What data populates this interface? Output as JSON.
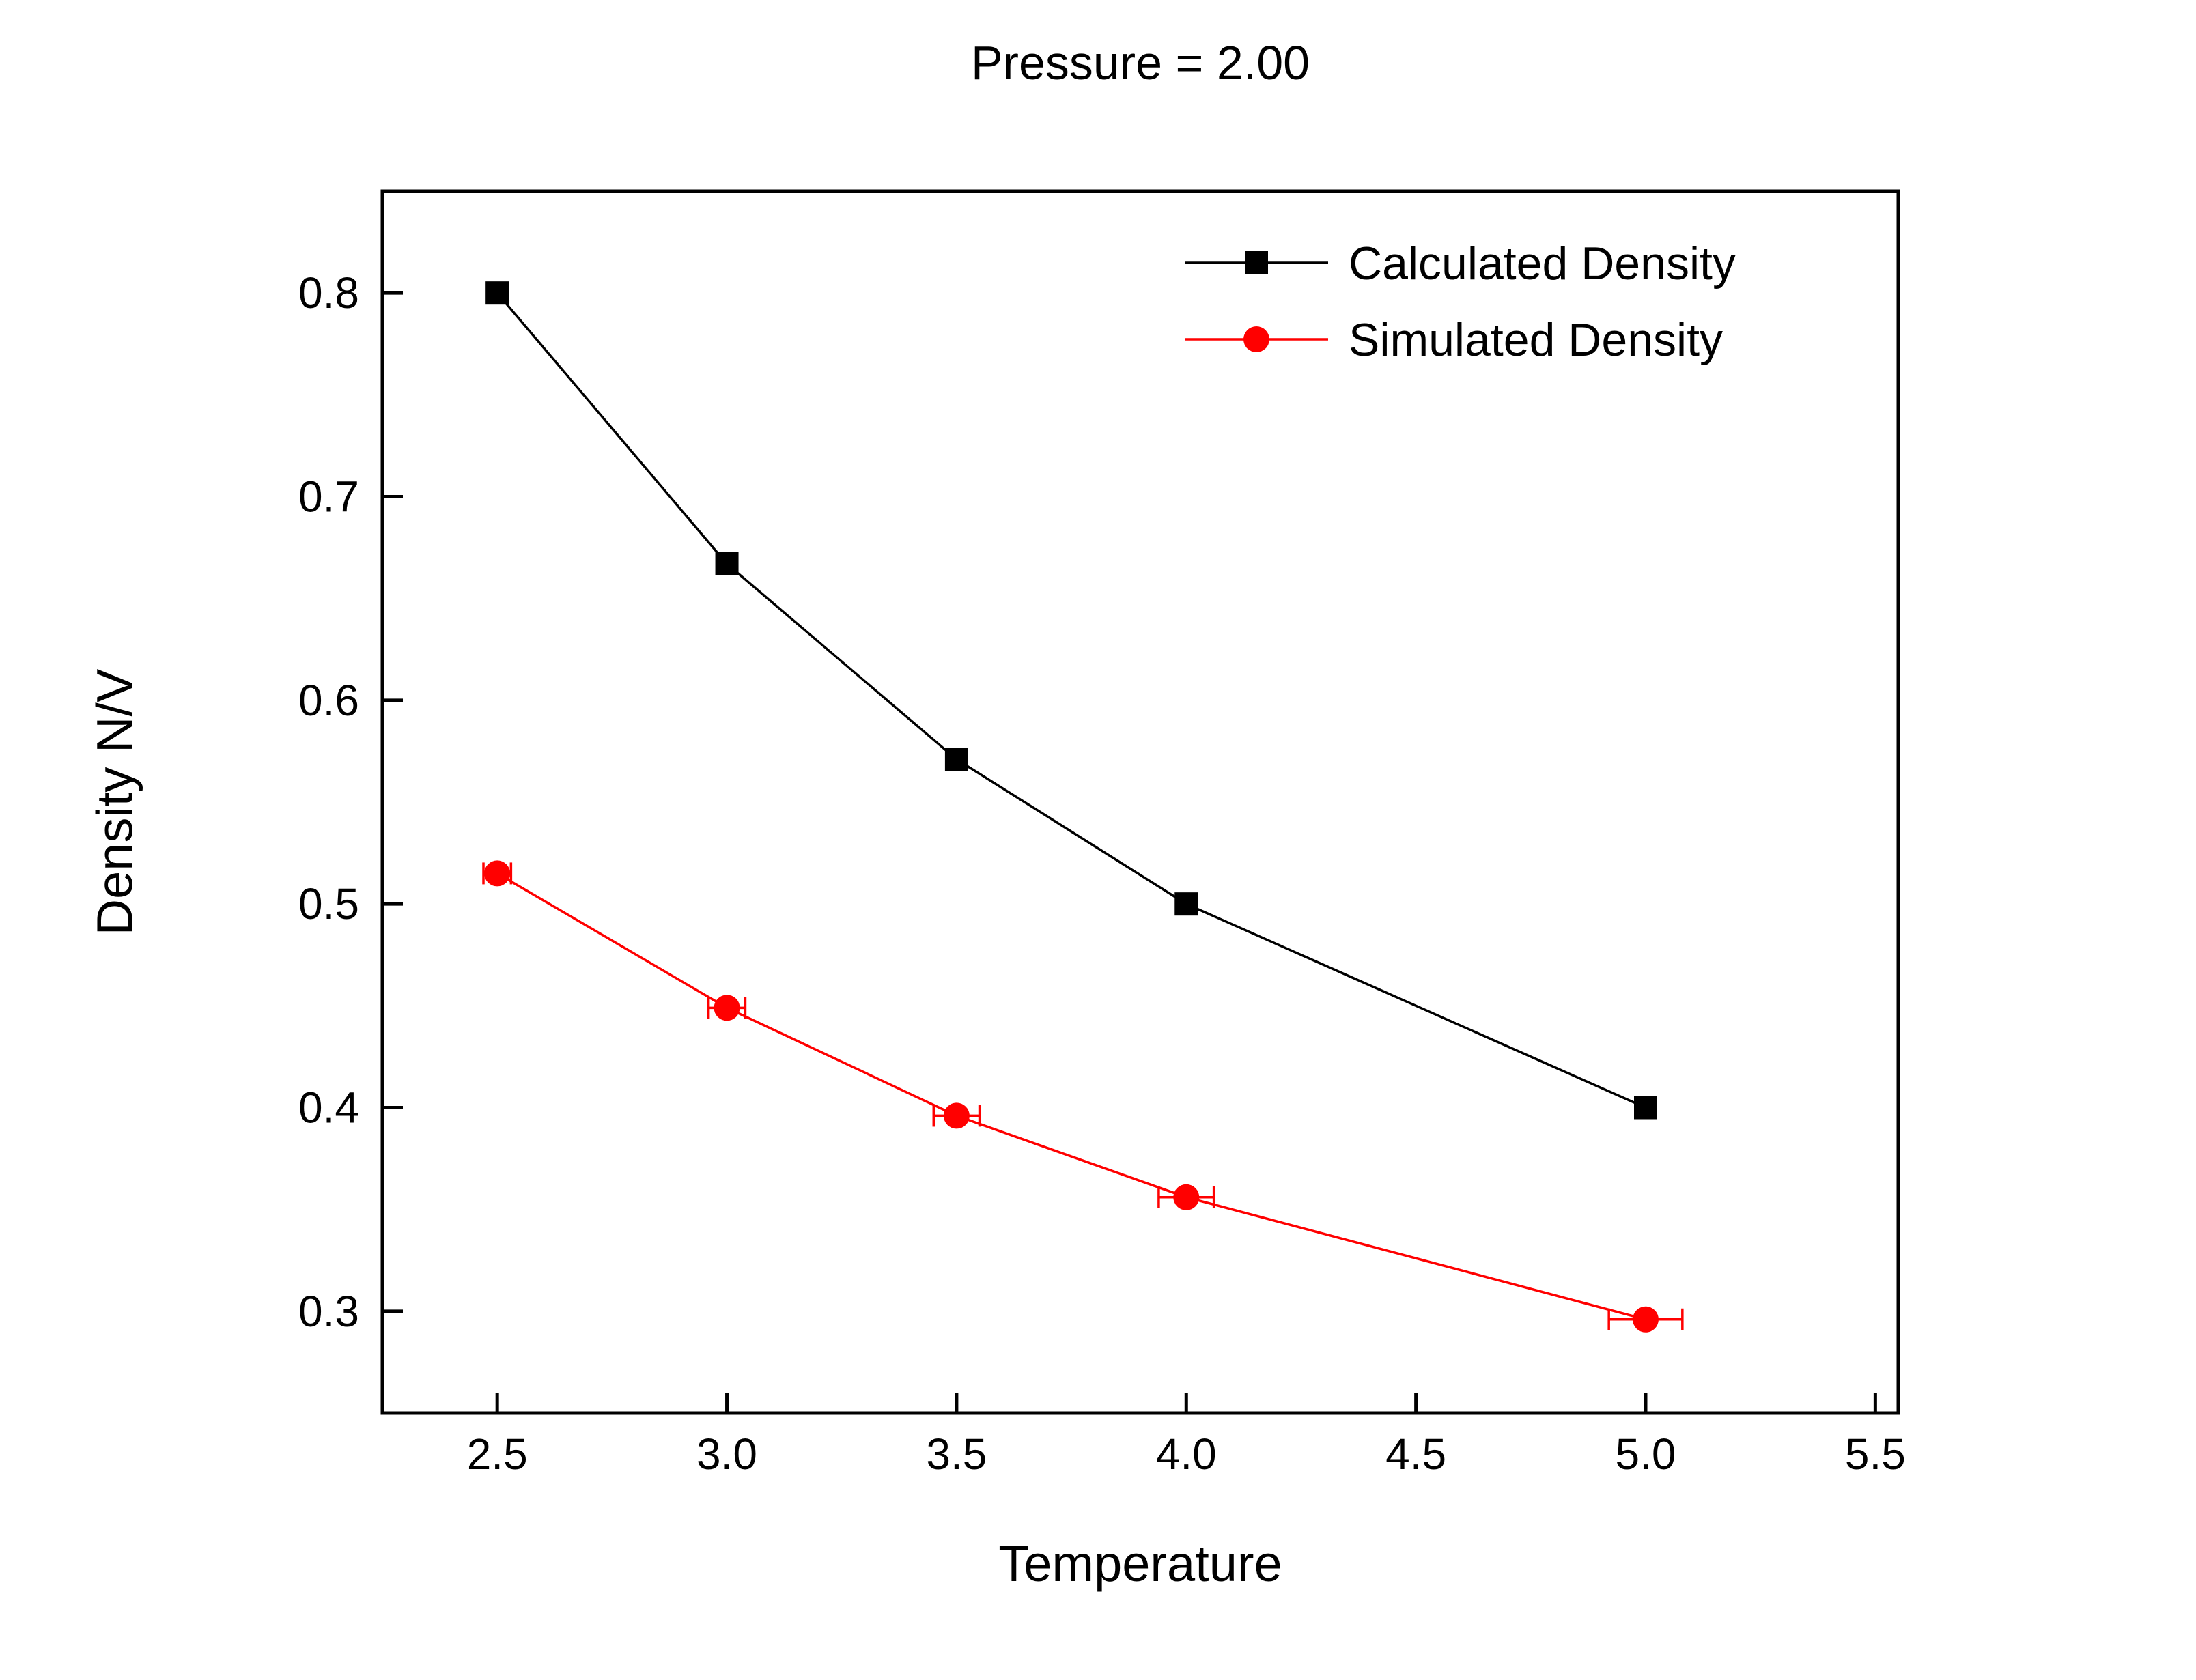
{
  "chart_data": {
    "type": "line",
    "title": "Pressure = 2.00",
    "xlabel": "Temperature",
    "ylabel": "Density N/V",
    "xlim": [
      2.25,
      5.55
    ],
    "ylim": [
      0.25,
      0.85
    ],
    "grid": false,
    "legend_position": "top-right",
    "xticks": {
      "values": [
        2.5,
        3.0,
        3.5,
        4.0,
        4.5,
        5.0,
        5.5
      ],
      "labels": [
        "2.5",
        "3.0",
        "3.5",
        "4.0",
        "4.5",
        "5.0",
        "5.5"
      ]
    },
    "yticks": {
      "values": [
        0.3,
        0.4,
        0.5,
        0.6,
        0.7,
        0.8
      ],
      "labels": [
        "0.3",
        "0.4",
        "0.5",
        "0.6",
        "0.7",
        "0.8"
      ]
    },
    "series": [
      {
        "name": "Calculated Density",
        "color": "#000000",
        "marker": "square",
        "x": [
          2.5,
          3.0,
          3.5,
          4.0,
          5.0
        ],
        "y": [
          0.8,
          0.667,
          0.571,
          0.5,
          0.4
        ]
      },
      {
        "name": "Simulated Density",
        "color": "#ff0000",
        "marker": "circle",
        "x": [
          2.5,
          3.0,
          3.5,
          4.0,
          5.0
        ],
        "y": [
          0.515,
          0.449,
          0.396,
          0.356,
          0.296
        ],
        "xerr": [
          0.03,
          0.04,
          0.05,
          0.06,
          0.08
        ]
      }
    ]
  }
}
